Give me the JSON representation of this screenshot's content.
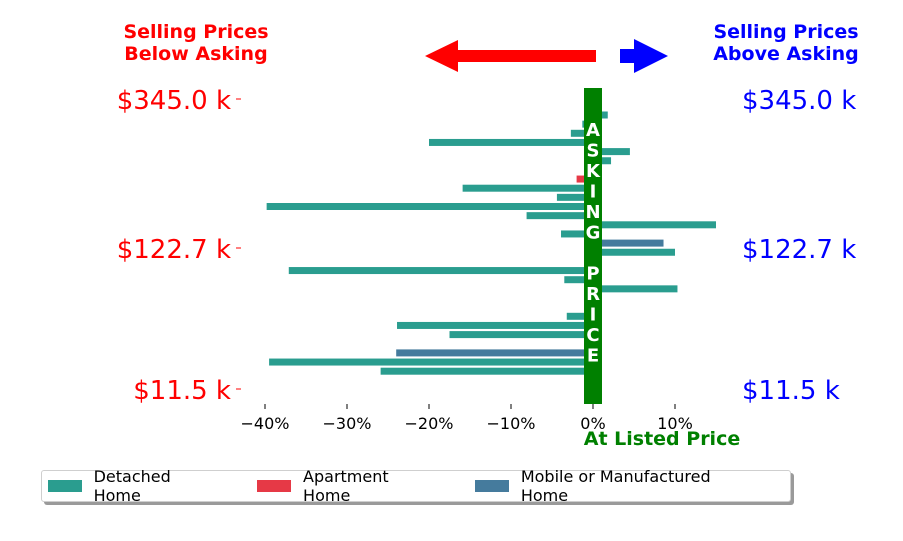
{
  "chart_data": {
    "type": "bar",
    "orientation": "horizontal",
    "header_left": [
      "Selling Prices",
      "Below Asking"
    ],
    "header_right": [
      "Selling Prices",
      "Above Asking"
    ],
    "center_label": [
      "A",
      "S",
      "K",
      "I",
      "N",
      "G",
      "",
      "P",
      "R",
      "I",
      "C",
      "E"
    ],
    "x_axis_label": "At Listed Price",
    "left_tick_labels": [
      "$345.0 k",
      "$122.7 k",
      "$11.5 k"
    ],
    "right_tick_labels": [
      "$345.0 k",
      "$122.7 k",
      "$11.5 k"
    ],
    "xticks": [
      -40,
      -30,
      -20,
      -10,
      0,
      10
    ],
    "xtick_labels": [
      "−40%",
      "−30%",
      "−20%",
      "−10%",
      "0%",
      "10%"
    ],
    "xlim": [
      -42,
      15
    ],
    "colors": {
      "Detached Home": "#2a9d8f",
      "Apartment Home": "#e63946",
      "Mobile or Manufactured Home": "#457b9d",
      "asking": "#008000",
      "below": "#ff0000",
      "above": "#0000ff"
    },
    "legend": [
      "Detached Home",
      "Apartment Home",
      "Mobile or Manufactured Home"
    ],
    "bars": [
      {
        "value": 1.8,
        "type": "Detached Home"
      },
      {
        "value": -1.3,
        "type": "Detached Home"
      },
      {
        "value": -2.7,
        "type": "Detached Home"
      },
      {
        "value": -20.0,
        "type": "Detached Home"
      },
      {
        "value": 4.5,
        "type": "Detached Home"
      },
      {
        "value": 2.2,
        "type": "Detached Home"
      },
      {
        "value": 0,
        "type": "Detached Home"
      },
      {
        "value": -2.0,
        "type": "Apartment Home"
      },
      {
        "value": -15.9,
        "type": "Detached Home"
      },
      {
        "value": -4.4,
        "type": "Detached Home"
      },
      {
        "value": -39.8,
        "type": "Detached Home"
      },
      {
        "value": -8.1,
        "type": "Detached Home"
      },
      {
        "value": 15.0,
        "type": "Detached Home"
      },
      {
        "value": -3.9,
        "type": "Detached Home"
      },
      {
        "value": 8.6,
        "type": "Mobile or Manufactured Home"
      },
      {
        "value": 10.0,
        "type": "Detached Home"
      },
      {
        "value": 0,
        "type": "Detached Home"
      },
      {
        "value": -37.1,
        "type": "Detached Home"
      },
      {
        "value": -3.5,
        "type": "Detached Home"
      },
      {
        "value": 10.3,
        "type": "Detached Home"
      },
      {
        "value": 0,
        "type": "Detached Home"
      },
      {
        "value": 0,
        "type": "Detached Home"
      },
      {
        "value": -3.2,
        "type": "Detached Home"
      },
      {
        "value": -23.9,
        "type": "Detached Home"
      },
      {
        "value": -17.5,
        "type": "Detached Home"
      },
      {
        "value": 0,
        "type": "Detached Home"
      },
      {
        "value": -24.0,
        "type": "Mobile or Manufactured Home"
      },
      {
        "value": -39.5,
        "type": "Detached Home"
      },
      {
        "value": -25.9,
        "type": "Detached Home"
      }
    ]
  }
}
